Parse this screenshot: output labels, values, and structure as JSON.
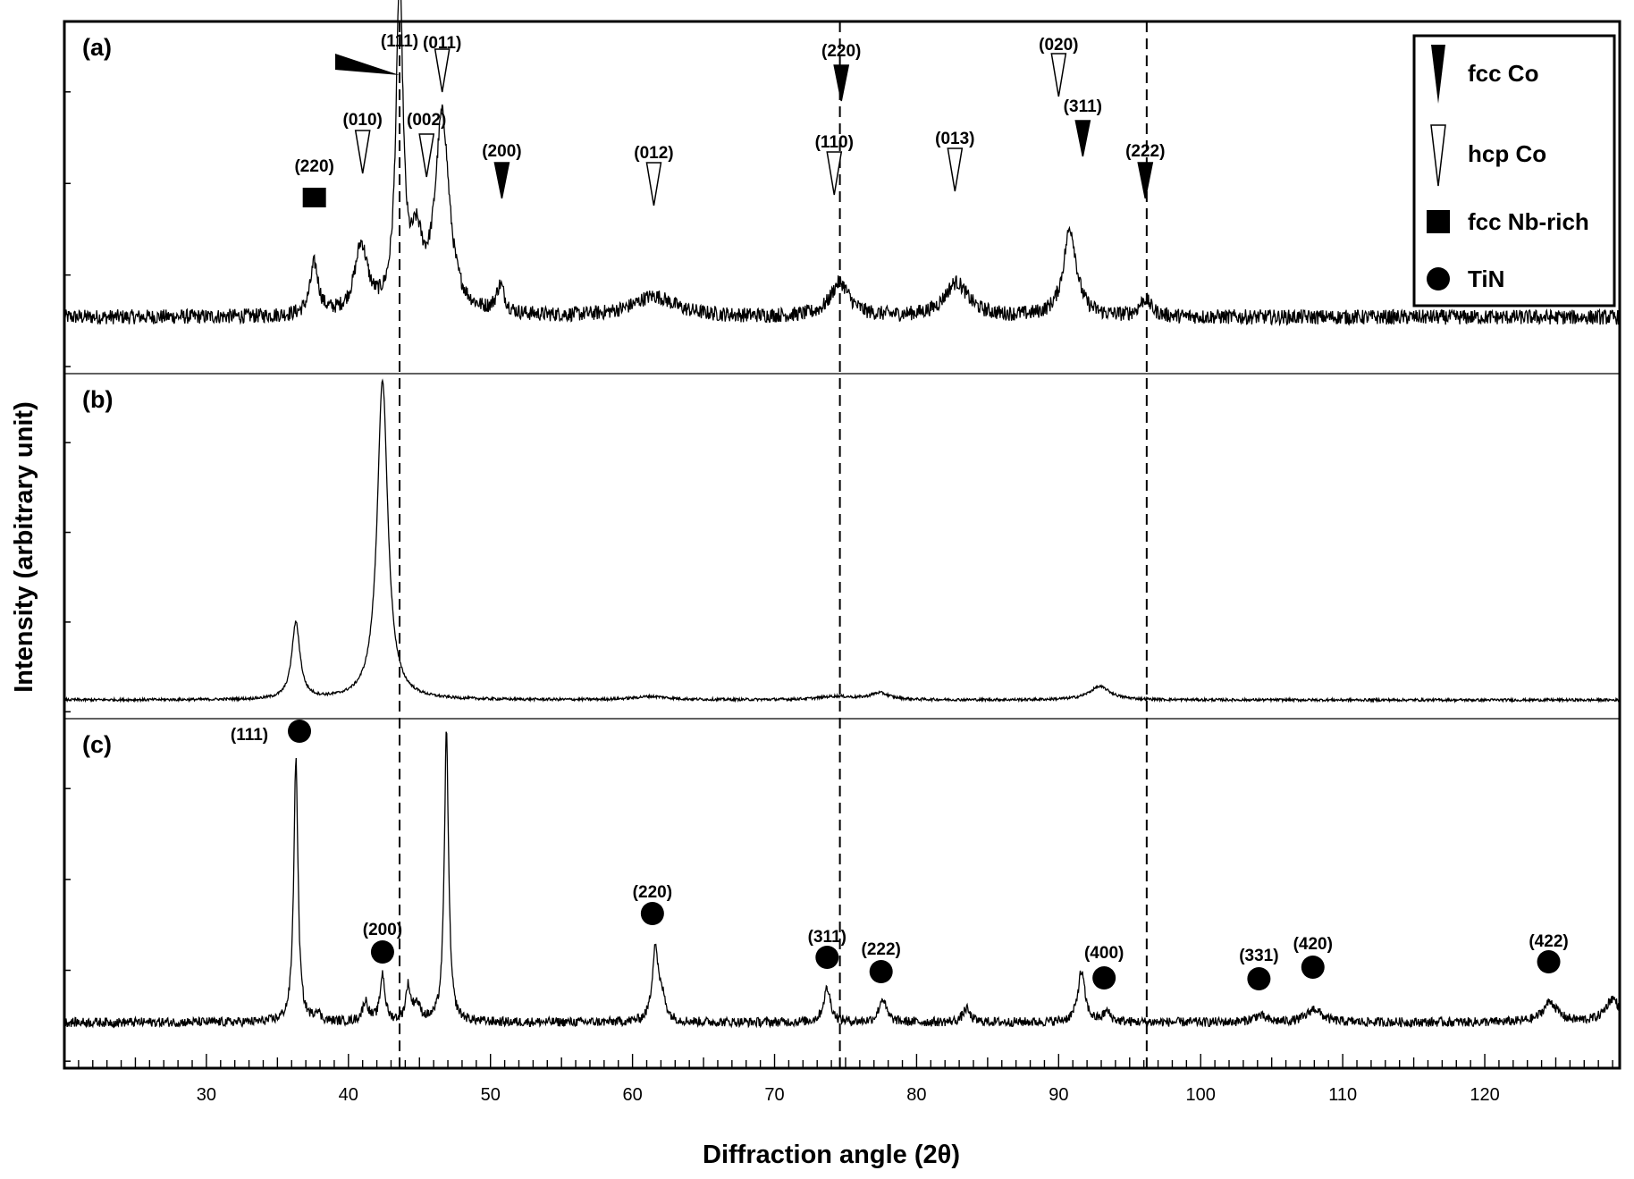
{
  "chart_data": {
    "type": "line",
    "xlabel": "Diffraction angle (2θ)",
    "ylabel": "Intensity (arbitrary unit)",
    "xlim": [
      20,
      129.5
    ],
    "x_ticks": [
      30,
      40,
      50,
      60,
      70,
      80,
      90,
      100,
      110,
      120
    ],
    "x_tick_labels": [
      "30",
      "40",
      "50",
      "60",
      "70",
      "80",
      "90",
      "100",
      "110",
      "120"
    ],
    "reference_lines_x": [
      43.6,
      74.6,
      96.2
    ],
    "grid": false,
    "legend_position": "top-right",
    "legend": [
      {
        "label": "fcc Co",
        "marker": "filled-triangle-down"
      },
      {
        "label": "hcp Co",
        "marker": "open-triangle-down"
      },
      {
        "label": "fcc Nb-rich",
        "marker": "filled-square"
      },
      {
        "label": "TiN",
        "marker": "filled-circle"
      }
    ],
    "panels": [
      {
        "label": "(a)",
        "baseline": 0.15,
        "peaks": [
          {
            "x": 37.6,
            "height": 0.15,
            "width": 0.35
          },
          {
            "x": 40.9,
            "height": 0.2,
            "width": 0.55
          },
          {
            "x": 43.6,
            "height": 0.95,
            "width": 0.3
          },
          {
            "x": 44.8,
            "height": 0.18,
            "width": 0.5
          },
          {
            "x": 46.6,
            "height": 0.58,
            "width": 0.6
          },
          {
            "x": 50.7,
            "height": 0.08,
            "width": 0.35
          },
          {
            "x": 61.5,
            "height": 0.06,
            "width": 1.8
          },
          {
            "x": 74.6,
            "height": 0.1,
            "width": 0.8
          },
          {
            "x": 82.8,
            "height": 0.1,
            "width": 1.0
          },
          {
            "x": 90.8,
            "height": 0.26,
            "width": 0.55
          },
          {
            "x": 96.1,
            "height": 0.05,
            "width": 0.5
          }
        ],
        "annotations": [
          {
            "label": "(220)",
            "x": 37.6,
            "marker": "filled-square"
          },
          {
            "label": "(010)",
            "x": 41.0,
            "marker": "open-triangle-down"
          },
          {
            "label": "(111)",
            "x": 43.6,
            "marker": "filled-triangle-left"
          },
          {
            "label": "(002)",
            "x": 45.5,
            "marker": "open-triangle-down"
          },
          {
            "label": "(011)",
            "x": 46.6,
            "marker": "open-triangle-down"
          },
          {
            "label": "(200)",
            "x": 50.8,
            "marker": "filled-triangle-down"
          },
          {
            "label": "(012)",
            "x": 61.5,
            "marker": "open-triangle-down"
          },
          {
            "label": "(220)",
            "x": 74.7,
            "marker": "filled-triangle-down"
          },
          {
            "label": "(110)",
            "x": 74.2,
            "marker": "open-triangle-down"
          },
          {
            "label": "(013)",
            "x": 82.7,
            "marker": "open-triangle-down"
          },
          {
            "label": "(020)",
            "x": 90.0,
            "marker": "open-triangle-down"
          },
          {
            "label": "(311)",
            "x": 91.7,
            "marker": "filled-triangle-down"
          },
          {
            "label": "(222)",
            "x": 96.1,
            "marker": "filled-triangle-down"
          }
        ]
      },
      {
        "label": "(b)",
        "baseline": 0.04,
        "peaks": [
          {
            "x": 36.3,
            "height": 0.23,
            "width": 0.35
          },
          {
            "x": 42.4,
            "height": 0.96,
            "width": 0.45
          },
          {
            "x": 61.3,
            "height": 0.01,
            "width": 1.5
          },
          {
            "x": 74.3,
            "height": 0.01,
            "width": 1.5
          },
          {
            "x": 77.4,
            "height": 0.02,
            "width": 0.8
          },
          {
            "x": 92.9,
            "height": 0.04,
            "width": 0.9
          }
        ],
        "annotations": []
      },
      {
        "label": "(c)",
        "baseline": 0.12,
        "peaks": [
          {
            "x": 36.3,
            "height": 0.78,
            "width": 0.18
          },
          {
            "x": 37.8,
            "height": 0.03,
            "width": 0.2
          },
          {
            "x": 41.2,
            "height": 0.06,
            "width": 0.25
          },
          {
            "x": 42.4,
            "height": 0.14,
            "width": 0.2
          },
          {
            "x": 44.2,
            "height": 0.1,
            "width": 0.2
          },
          {
            "x": 44.8,
            "height": 0.05,
            "width": 0.3
          },
          {
            "x": 46.9,
            "height": 0.86,
            "width": 0.18
          },
          {
            "x": 61.6,
            "height": 0.22,
            "width": 0.25
          },
          {
            "x": 62.1,
            "height": 0.06,
            "width": 0.3
          },
          {
            "x": 73.7,
            "height": 0.1,
            "width": 0.3
          },
          {
            "x": 77.6,
            "height": 0.07,
            "width": 0.3
          },
          {
            "x": 83.5,
            "height": 0.04,
            "width": 0.3
          },
          {
            "x": 91.6,
            "height": 0.15,
            "width": 0.3
          },
          {
            "x": 93.4,
            "height": 0.03,
            "width": 0.3
          },
          {
            "x": 104.1,
            "height": 0.02,
            "width": 0.5
          },
          {
            "x": 108.0,
            "height": 0.04,
            "width": 0.6
          },
          {
            "x": 124.6,
            "height": 0.06,
            "width": 0.6
          },
          {
            "x": 129.0,
            "height": 0.07,
            "width": 0.6
          }
        ],
        "annotations": [
          {
            "label": "(111)",
            "x": 36.3,
            "marker": "filled-circle"
          },
          {
            "label": "(200)",
            "x": 42.4,
            "marker": "filled-circle"
          },
          {
            "label": "(220)",
            "x": 61.4,
            "marker": "filled-circle"
          },
          {
            "label": "(311)",
            "x": 73.7,
            "marker": "filled-circle"
          },
          {
            "label": "(222)",
            "x": 77.5,
            "marker": "filled-circle"
          },
          {
            "label": "(400)",
            "x": 93.2,
            "marker": "filled-circle"
          },
          {
            "label": "(331)",
            "x": 104.1,
            "marker": "filled-circle"
          },
          {
            "label": "(420)",
            "x": 107.9,
            "marker": "filled-circle"
          },
          {
            "label": "(422)",
            "x": 124.5,
            "marker": "filled-circle"
          }
        ]
      }
    ]
  }
}
